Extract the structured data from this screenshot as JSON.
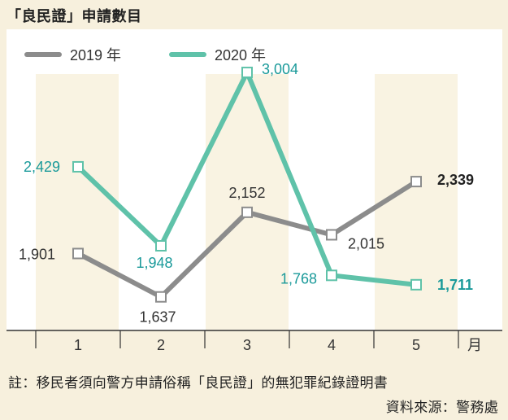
{
  "title": "「良民證」申請數目",
  "footnote": "註：移民者須向警方申請俗稱「良民證」的無犯罪紀錄證明書",
  "source": "資料來源：警務處",
  "colors": {
    "series_2019": "#8c8c8c",
    "series_2020": "#5fc2a9",
    "label_2020": "#1a9a9a",
    "band": "#f9f3e2",
    "plot_bg": "#ffffff"
  },
  "chart_data": {
    "type": "line",
    "x_unit_label": "月",
    "categories": [
      "1",
      "2",
      "3",
      "4",
      "5"
    ],
    "series": [
      {
        "name": "2019 年",
        "values": [
          1901,
          1637,
          2152,
          2015,
          2339
        ],
        "labels": [
          "1,901",
          "1,637",
          "2,152",
          "2,015",
          "2,339"
        ]
      },
      {
        "name": "2020 年",
        "values": [
          2429,
          1948,
          3004,
          1768,
          1711
        ],
        "labels": [
          "2,429",
          "1,948",
          "3,004",
          "1,768",
          "1,711"
        ]
      }
    ],
    "legend_position": "top-left",
    "grid": false
  }
}
